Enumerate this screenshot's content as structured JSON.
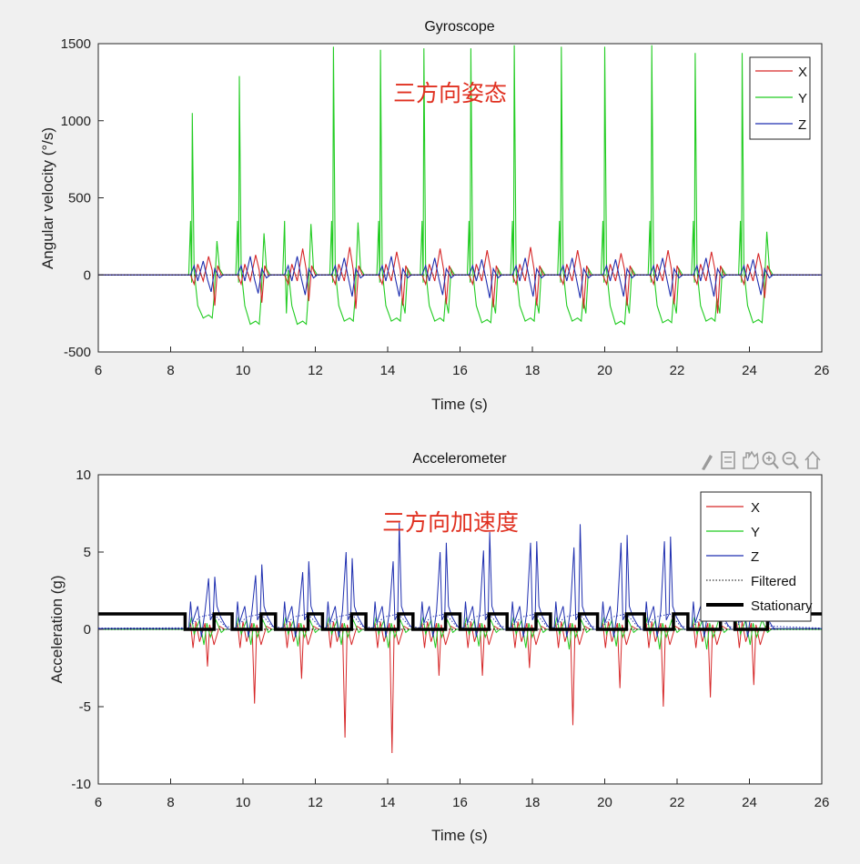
{
  "colors": {
    "background": "#f0f0f0",
    "axes_bg": "#ffffff",
    "x": "#d62728",
    "y": "#22cc22",
    "z": "#1f2fb0",
    "annotation": "#e03020",
    "toolbar_icon": "#9a9a9a"
  },
  "toolbar": {
    "icons": [
      "brush-icon",
      "data-tip-icon",
      "pan-hand-icon",
      "zoom-in-icon",
      "zoom-out-icon",
      "home-icon"
    ]
  },
  "chart_data": [
    {
      "type": "line",
      "title": "Gyroscope",
      "xlabel": "Time (s)",
      "ylabel": "Angular velocity (°/s)",
      "xlim": [
        6,
        26
      ],
      "ylim": [
        -500,
        1500
      ],
      "xticks": [
        6,
        8,
        10,
        12,
        14,
        16,
        18,
        20,
        22,
        24,
        26
      ],
      "yticks": [
        -500,
        0,
        500,
        1000,
        1500
      ],
      "xtick_labels": [
        "6",
        "8",
        "10",
        "12",
        "14",
        "16",
        "18",
        "20",
        "22",
        "24",
        "26"
      ],
      "ytick_labels": [
        "-500",
        "0",
        "500",
        "1000",
        "1500"
      ],
      "annotation": "三方向姿态",
      "legend": {
        "position": "top-right",
        "entries": [
          "X",
          "Y",
          "Z"
        ]
      },
      "series": [
        {
          "name": "X",
          "color": "#d62728"
        },
        {
          "name": "Y",
          "color": "#22cc22"
        },
        {
          "name": "Z",
          "color": "#1f2fb0"
        }
      ],
      "motion_cycles": {
        "start_times": [
          8.6,
          9.9,
          11.2,
          12.5,
          13.8,
          15.0,
          16.3,
          17.5,
          18.8,
          20.0,
          21.3,
          22.5,
          23.8
        ],
        "y_peaks": [
          1050,
          1290,
          1520,
          1480,
          1460,
          1470,
          1470,
          1490,
          1480,
          1480,
          1490,
          1440,
          1440
        ],
        "y_secondary_peaks": [
          220,
          270,
          330,
          340,
          470,
          510,
          490,
          560,
          410,
          580,
          580,
          590,
          280
        ],
        "y_troughs": [
          -280,
          -320,
          -320,
          -300,
          -300,
          -300,
          -310,
          -300,
          -300,
          -320,
          -310,
          -300,
          -310
        ],
        "x_peaks": [
          120,
          130,
          170,
          180,
          150,
          170,
          160,
          180,
          160,
          140,
          160,
          150,
          140
        ],
        "x_troughs": [
          -200,
          -180,
          -170,
          -220,
          -200,
          -190,
          -210,
          -200,
          -220,
          -200,
          -190,
          -250,
          -150
        ],
        "z_peaks": [
          90,
          120,
          120,
          110,
          120,
          110,
          100,
          110,
          110,
          100,
          110,
          110,
          100
        ],
        "z_troughs": [
          -110,
          -120,
          -130,
          -140,
          -140,
          -130,
          -150,
          -140,
          -150,
          -140,
          -140,
          -140,
          -130
        ]
      }
    },
    {
      "type": "line",
      "title": "Accelerometer",
      "xlabel": "Time (s)",
      "ylabel": "Acceleration (g)",
      "xlim": [
        6,
        26
      ],
      "ylim": [
        -10,
        10
      ],
      "xticks": [
        6,
        8,
        10,
        12,
        14,
        16,
        18,
        20,
        22,
        24,
        26
      ],
      "yticks": [
        -10,
        -5,
        0,
        5,
        10
      ],
      "xtick_labels": [
        "6",
        "8",
        "10",
        "12",
        "14",
        "16",
        "18",
        "20",
        "22",
        "24",
        "26"
      ],
      "ytick_labels": [
        "-10",
        "-5",
        "0",
        "5",
        "10"
      ],
      "annotation": "三方向加速度",
      "legend": {
        "position": "top-right",
        "entries": [
          "X",
          "Y",
          "Z",
          "Filtered",
          "Stationary"
        ]
      },
      "series": [
        {
          "name": "X",
          "color": "#d62728"
        },
        {
          "name": "Y",
          "color": "#22cc22"
        },
        {
          "name": "Z",
          "color": "#1f2fb0"
        },
        {
          "name": "Filtered",
          "color": "#000000",
          "style": "dotted"
        },
        {
          "name": "Stationary",
          "color": "#000000",
          "style": "thick"
        }
      ],
      "motion_cycles": {
        "start_times": [
          8.5,
          9.8,
          11.1,
          12.3,
          13.6,
          14.9,
          16.1,
          17.4,
          18.6,
          19.9,
          21.1,
          22.4,
          23.6
        ],
        "z_peaks": [
          3.4,
          4.2,
          4.4,
          4.6,
          6.9,
          5.6,
          6.3,
          5.7,
          6.8,
          6.1,
          6.0,
          5.6,
          3.5
        ],
        "z_secondary_peaks": [
          3.3,
          3.5,
          3.7,
          5.0,
          4.4,
          5.0,
          5.1,
          5.6,
          5.3,
          5.6,
          5.7,
          5.3,
          2.0
        ],
        "x_troughs": [
          -2.4,
          -4.8,
          -3.2,
          -7.0,
          -8.0,
          -3.0,
          -3.0,
          -2.5,
          -6.2,
          -3.8,
          -5.0,
          -4.4,
          -3.6
        ],
        "y_troughs": [
          -1.0,
          -1.0,
          -1.1,
          -1.0,
          -1.2,
          -1.2,
          -1.1,
          -1.2,
          -1.3,
          -1.1,
          -1.3,
          -1.3,
          -1.0
        ]
      },
      "stationary": {
        "levels": [
          1,
          0
        ],
        "moving_intervals": [
          [
            8.4,
            9.2
          ],
          [
            9.7,
            10.5
          ],
          [
            10.9,
            11.8
          ],
          [
            12.2,
            13.0
          ],
          [
            13.4,
            14.3
          ],
          [
            14.7,
            15.6
          ],
          [
            16.0,
            16.8
          ],
          [
            17.3,
            18.1
          ],
          [
            18.5,
            19.3
          ],
          [
            19.8,
            20.6
          ],
          [
            21.1,
            21.9
          ],
          [
            22.3,
            23.2
          ],
          [
            23.6,
            24.5
          ]
        ]
      }
    }
  ]
}
